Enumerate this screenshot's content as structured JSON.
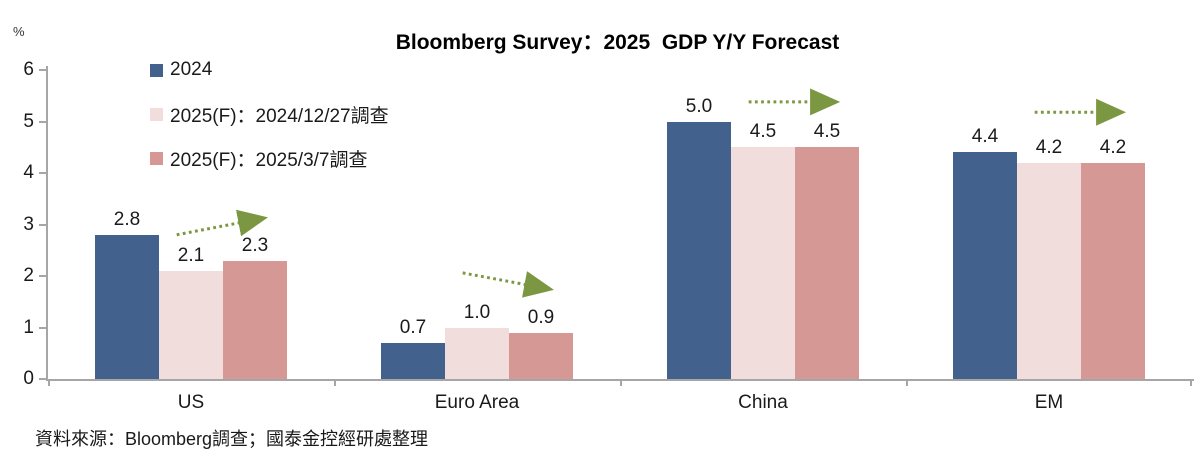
{
  "source_note": "資料來源：Bloomberg調查；國泰金控經研處整理",
  "colors": {
    "arrow_green": "#7b9741",
    "axis_gray": "#a6a6a6",
    "text": "#1a1a1a"
  },
  "chart_data": {
    "type": "bar",
    "title": "Bloomberg Survey：2025  GDP Y/Y Forecast",
    "unit_label": "%",
    "xlabel": "",
    "ylabel": "%",
    "categories": [
      "US",
      "Euro Area",
      "China",
      "EM"
    ],
    "series": [
      {
        "name": "2024",
        "color": "#42618d",
        "values": [
          2.8,
          0.7,
          5.0,
          4.4
        ]
      },
      {
        "name": "2025(F)：2024/12/27調查",
        "color": "#f1dddb",
        "values": [
          2.1,
          1.0,
          4.5,
          4.2
        ]
      },
      {
        "name": "2025(F)：2025/3/7調查",
        "color": "#d59894",
        "values": [
          2.3,
          0.9,
          4.5,
          4.2
        ]
      }
    ],
    "ylim": [
      0,
      6
    ],
    "ytick_step": 1,
    "grid": false,
    "legend_position": "upper-left",
    "value_label_decimals": 1,
    "annotations": [
      {
        "category": "US",
        "type": "trend-arrow",
        "direction": "up",
        "y_start": 2.8,
        "y_end": 3.15
      },
      {
        "category": "Euro Area",
        "type": "trend-arrow",
        "direction": "down",
        "y_start": 2.06,
        "y_end": 1.72
      },
      {
        "category": "China",
        "type": "trend-arrow",
        "direction": "flat",
        "y_start": 5.38,
        "y_end": 5.38
      },
      {
        "category": "EM",
        "type": "trend-arrow",
        "direction": "flat",
        "y_start": 5.18,
        "y_end": 5.18
      }
    ]
  }
}
